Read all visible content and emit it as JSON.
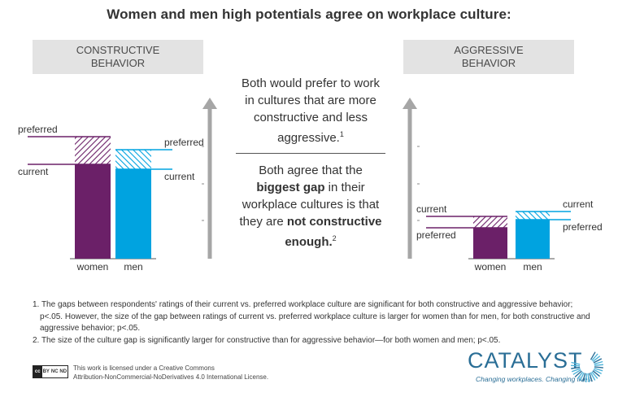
{
  "title": "Women and men high potentials agree on workplace culture:",
  "left_panel": {
    "header_line1": "CONSTRUCTIVE",
    "header_line2": "BEHAVIOR"
  },
  "right_panel": {
    "header_line1": "AGGRESSIVE",
    "header_line2": "BEHAVIOR"
  },
  "middle": {
    "text1": "Both would prefer to work in cultures that are more constructive and less aggressive.",
    "text1_sup": "1",
    "text2_a": "Both agree that the ",
    "text2_bold1": "biggest gap",
    "text2_b": " in their workplace cultures is that they are ",
    "text2_bold2": "not constructive enough.",
    "text2_sup": "2"
  },
  "chart_data": [
    {
      "type": "bar",
      "title": "CONSTRUCTIVE BEHAVIOR",
      "categories": [
        "women",
        "men"
      ],
      "series": [
        {
          "name": "current",
          "values": [
            58,
            55
          ]
        },
        {
          "name": "preferred",
          "values": [
            75,
            67
          ]
        }
      ],
      "ylim": [
        0,
        100
      ],
      "grid": false,
      "colors": {
        "women": "#6b2068",
        "men": "#00a3e0",
        "axis": "#a6a6a6"
      }
    },
    {
      "type": "bar",
      "title": "AGGRESSIVE BEHAVIOR",
      "categories": [
        "women",
        "men"
      ],
      "series": [
        {
          "name": "current",
          "values": [
            26,
            29
          ]
        },
        {
          "name": "preferred",
          "values": [
            19,
            24
          ]
        }
      ],
      "ylim": [
        0,
        100
      ],
      "grid": false,
      "colors": {
        "women": "#6b2068",
        "men": "#00a3e0",
        "axis": "#a6a6a6"
      }
    }
  ],
  "footnotes": [
    "1. The gaps between respondents' ratings of their current vs. preferred workplace culture are significant for both constructive and aggressive behavior; p<.05. However, the size of the gap between ratings of current vs. preferred workplace culture is larger for women than for men, for both constructive and aggressive behavior; p<.05.",
    "2. The size of the culture gap is significantly larger for constructive than for aggressive behavior—for both women and men; p<.05."
  ],
  "license": {
    "badge": [
      "cc",
      "BY",
      "NC",
      "ND"
    ],
    "line1": "This work is licensed under a Creative Commons",
    "line2": "Attribution-NonCommercial-NoDerivatives 4.0 International License."
  },
  "logo": {
    "name": "CATALYST",
    "tagline": "Changing workplaces. Changing lives.",
    "color": "#2a6e96"
  }
}
